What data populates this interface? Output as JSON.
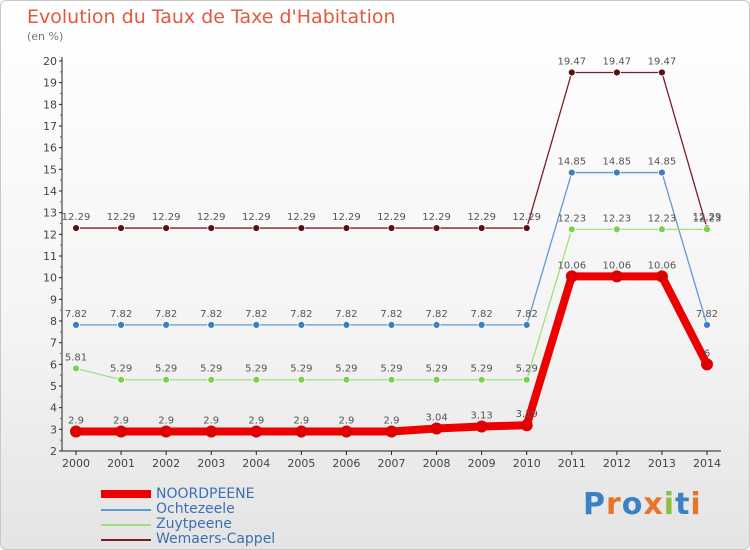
{
  "title": "Evolution du Taux de Taxe d'Habitation",
  "unit_label": "(en %)",
  "logo": {
    "letters": [
      "P",
      "r",
      "o",
      "x",
      "i",
      "t",
      "i"
    ],
    "colors": [
      "#3b82c4",
      "#e8742a",
      "#3b82c4",
      "#e8742a",
      "#8bbf3f",
      "#3b82c4",
      "#e8742a"
    ]
  },
  "chart_data": {
    "type": "line",
    "x": [
      "2000",
      "2001",
      "2002",
      "2003",
      "2004",
      "2005",
      "2006",
      "2007",
      "2008",
      "2009",
      "2010",
      "2011",
      "2012",
      "2013",
      "2014"
    ],
    "ylim": [
      2,
      20
    ],
    "yticks": [
      "2",
      "3",
      "4",
      "5",
      "6",
      "7",
      "8",
      "9",
      "10",
      "11",
      "12",
      "13",
      "14",
      "15",
      "16",
      "17",
      "18",
      "19",
      "20"
    ],
    "grid": false,
    "legend_position": "bottom-left",
    "series": [
      {
        "name": "Wemaers-Cappel",
        "color": "#7a1f25",
        "marker": "#5a1015",
        "values": [
          12.29,
          12.29,
          12.29,
          12.29,
          12.29,
          12.29,
          12.29,
          12.29,
          12.29,
          12.29,
          12.29,
          19.47,
          19.47,
          19.47,
          12.29
        ],
        "labels": [
          "12.29",
          "12.29",
          "12.29",
          "12.29",
          "12.29",
          "12.29",
          "12.29",
          "12.29",
          "12.29",
          "12.29",
          "12.29",
          "19.47",
          "19.47",
          "19.47",
          "12.29"
        ]
      },
      {
        "name": "Ochtezeele",
        "color": "#5e9ad3",
        "marker": "#3d7fc0",
        "values": [
          7.82,
          7.82,
          7.82,
          7.82,
          7.82,
          7.82,
          7.82,
          7.82,
          7.82,
          7.82,
          7.82,
          14.85,
          14.85,
          14.85,
          7.82
        ],
        "labels": [
          "7.82",
          "7.82",
          "7.82",
          "7.82",
          "7.82",
          "7.82",
          "7.82",
          "7.82",
          "7.82",
          "7.82",
          "7.82",
          "14.85",
          "14.85",
          "14.85",
          "7.82"
        ]
      },
      {
        "name": "Zuytpeene",
        "color": "#9fe07e",
        "marker": "#7dcf4d",
        "values": [
          5.81,
          5.29,
          5.29,
          5.29,
          5.29,
          5.29,
          5.29,
          5.29,
          5.29,
          5.29,
          5.29,
          12.23,
          12.23,
          12.23,
          12.23
        ],
        "labels": [
          "5.81",
          "5.29",
          "5.29",
          "5.29",
          "5.29",
          "5.29",
          "5.29",
          "5.29",
          "5.29",
          "5.29",
          "5.29",
          "12.23",
          "12.23",
          "12.23",
          "12.23"
        ]
      },
      {
        "name": "NOORDPEENE",
        "color": "#ee0000",
        "marker": "#dd0000",
        "thick": true,
        "values": [
          2.9,
          2.9,
          2.9,
          2.9,
          2.9,
          2.9,
          2.9,
          2.9,
          3.04,
          3.13,
          3.19,
          10.06,
          10.06,
          10.06,
          6
        ],
        "labels": [
          "2.9",
          "2.9",
          "2.9",
          "2.9",
          "2.9",
          "2.9",
          "2.9",
          "2.9",
          "3.04",
          "3.13",
          "3.19",
          "10.06",
          "10.06",
          "10.06",
          "6"
        ]
      }
    ],
    "legend_order": [
      "NOORDPEENE",
      "Ochtezeele",
      "Zuytpeene",
      "Wemaers-Cappel"
    ]
  }
}
